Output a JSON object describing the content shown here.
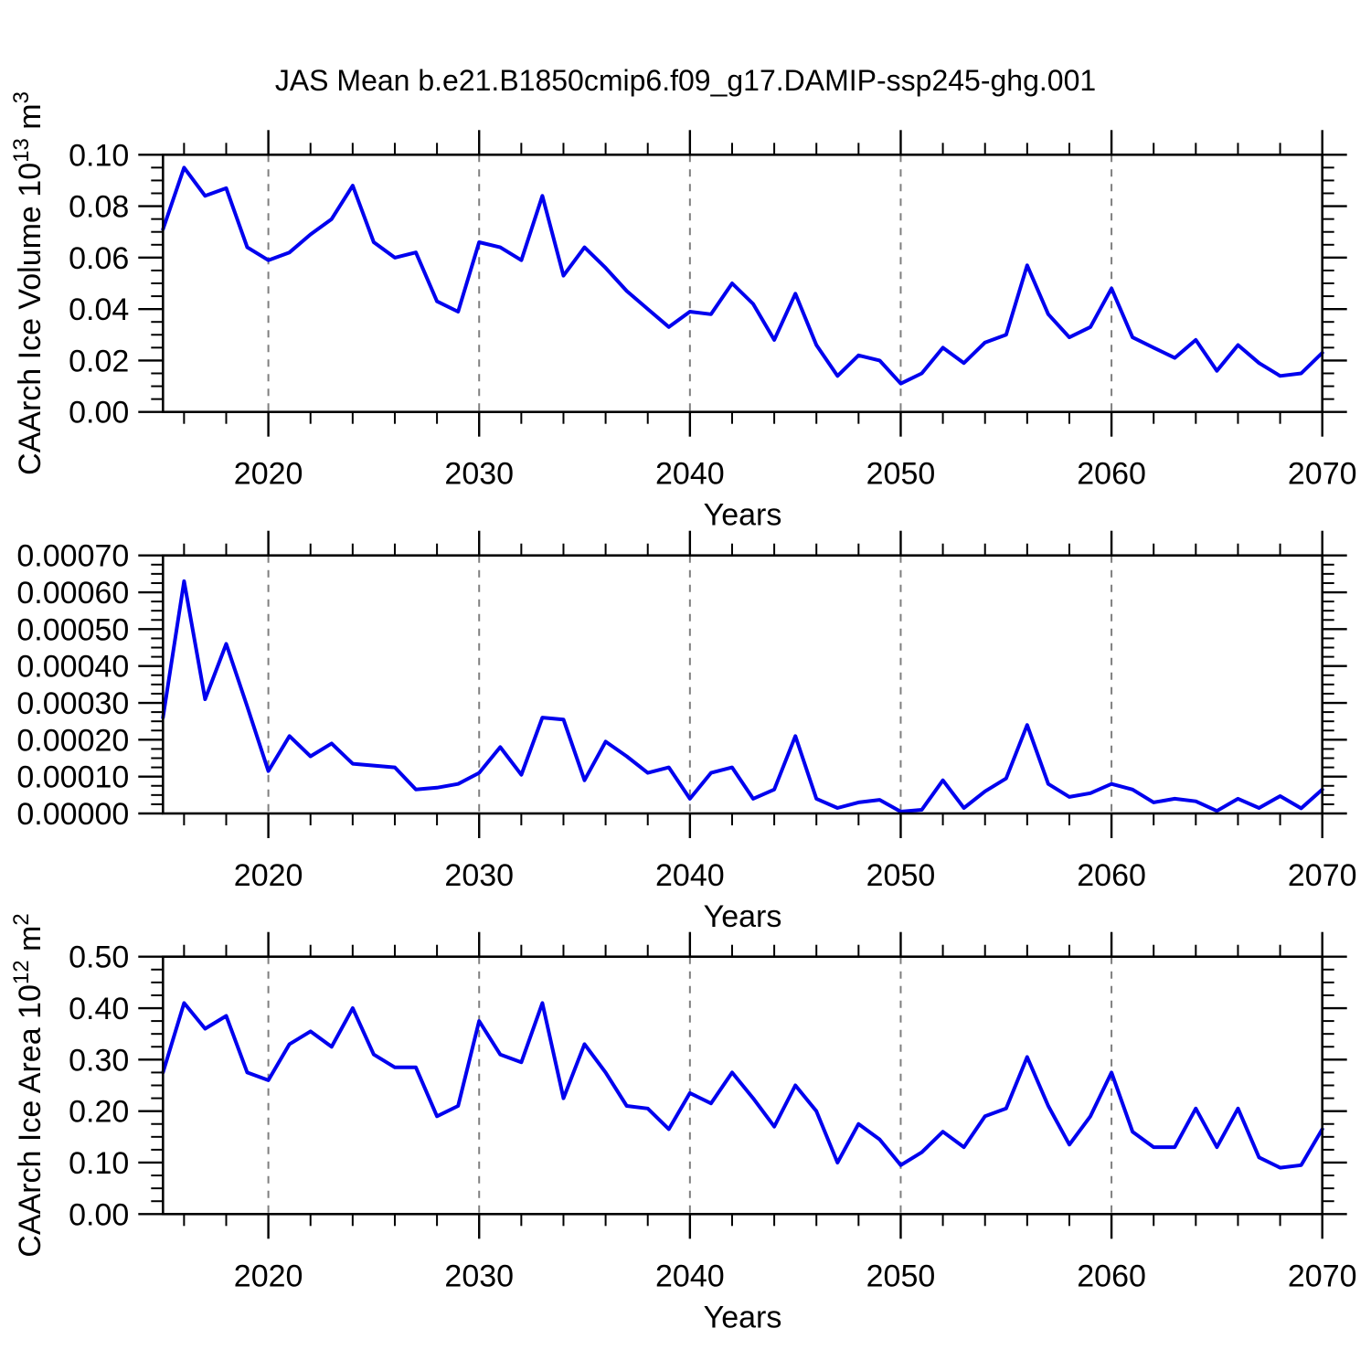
{
  "figure_title": "JAS Mean b.e21.B1850cmip6.f09_g17.DAMIP-ssp245-ghg.001",
  "colors": {
    "line": "#0000ee",
    "axis": "#000000",
    "gridline": "#7f7f7f",
    "background": "#ffffff"
  },
  "years": [
    2015,
    2016,
    2017,
    2018,
    2019,
    2020,
    2021,
    2022,
    2023,
    2024,
    2025,
    2026,
    2027,
    2028,
    2029,
    2030,
    2031,
    2032,
    2033,
    2034,
    2035,
    2036,
    2037,
    2038,
    2039,
    2040,
    2041,
    2042,
    2043,
    2044,
    2045,
    2046,
    2047,
    2048,
    2049,
    2050,
    2051,
    2052,
    2053,
    2054,
    2055,
    2056,
    2057,
    2058,
    2059,
    2060,
    2061,
    2062,
    2063,
    2064,
    2065,
    2066,
    2067,
    2068,
    2069,
    2070
  ],
  "chart_data": [
    {
      "id": "ice-volume",
      "type": "line",
      "ylabel": "CAArch Ice Volume 10^13 m^3",
      "ylabel_parts": [
        {
          "t": "CAArch Ice Volume 10"
        },
        {
          "t": "13",
          "sup": true
        },
        {
          "t": " m"
        },
        {
          "t": "3",
          "sup": true
        }
      ],
      "xlabel": "Years",
      "xlim": [
        2015,
        2070
      ],
      "x_tick_labels": [
        "2020",
        "2030",
        "2040",
        "2050",
        "2060",
        "2070"
      ],
      "x_tick_values": [
        2020,
        2030,
        2040,
        2050,
        2060,
        2070
      ],
      "x_minor_step": 2,
      "gridline_years": [
        2020,
        2030,
        2040,
        2050,
        2060
      ],
      "ylim": [
        0.0,
        0.1
      ],
      "y_major_step": 0.02,
      "y_minor_step": 0.005,
      "y_tick_labels": [
        "0.00",
        "0.02",
        "0.04",
        "0.06",
        "0.08",
        "0.10"
      ],
      "values": [
        0.071,
        0.095,
        0.084,
        0.087,
        0.064,
        0.059,
        0.062,
        0.069,
        0.075,
        0.088,
        0.066,
        0.06,
        0.062,
        0.043,
        0.039,
        0.066,
        0.064,
        0.059,
        0.084,
        0.053,
        0.064,
        0.056,
        0.047,
        0.04,
        0.033,
        0.039,
        0.038,
        0.05,
        0.042,
        0.028,
        0.046,
        0.026,
        0.014,
        0.022,
        0.02,
        0.011,
        0.015,
        0.025,
        0.019,
        0.027,
        0.03,
        0.057,
        0.038,
        0.029,
        0.033,
        0.048,
        0.029,
        0.025,
        0.021,
        0.028,
        0.016,
        0.026,
        0.019,
        0.014,
        0.015,
        0.023
      ]
    },
    {
      "id": "ice-volume-tendency",
      "type": "line",
      "ylabel": "",
      "ylabel_parts": [],
      "xlabel": "Years",
      "xlim": [
        2015,
        2070
      ],
      "x_tick_labels": [
        "2020",
        "2030",
        "2040",
        "2050",
        "2060",
        "2070"
      ],
      "x_tick_values": [
        2020,
        2030,
        2040,
        2050,
        2060,
        2070
      ],
      "x_minor_step": 2,
      "gridline_years": [
        2020,
        2030,
        2040,
        2050,
        2060
      ],
      "ylim": [
        0.0,
        0.0007
      ],
      "y_major_step": 0.0001,
      "y_minor_step": 2.5e-05,
      "y_tick_labels": [
        "0.00000",
        "0.00010",
        "0.00020",
        "0.00030",
        "0.00040",
        "0.00050",
        "0.00060",
        "0.00070"
      ],
      "values": [
        0.00026,
        0.00063,
        0.00031,
        0.00046,
        0.00029,
        0.000115,
        0.00021,
        0.000155,
        0.00019,
        0.000135,
        0.00013,
        0.000125,
        6.5e-05,
        7e-05,
        8e-05,
        0.00011,
        0.00018,
        0.000105,
        0.00026,
        0.000255,
        9e-05,
        0.000195,
        0.000155,
        0.00011,
        0.000125,
        4e-05,
        0.00011,
        0.000125,
        4e-05,
        6.5e-05,
        0.00021,
        4e-05,
        1.5e-05,
        3e-05,
        3.7e-05,
        5e-06,
        1e-05,
        9e-05,
        1.5e-05,
        6e-05,
        9.5e-05,
        0.00024,
        8e-05,
        4.5e-05,
        5.5e-05,
        8e-05,
        6.5e-05,
        3e-05,
        4e-05,
        3.3e-05,
        7e-06,
        4e-05,
        1.5e-05,
        4.7e-05,
        1.4e-05,
        6.5e-05
      ]
    },
    {
      "id": "ice-area",
      "type": "line",
      "ylabel": "CAArch Ice Area 10^12 m^2",
      "ylabel_parts": [
        {
          "t": "CAArch Ice Area 10"
        },
        {
          "t": "12",
          "sup": true
        },
        {
          "t": " m"
        },
        {
          "t": "2",
          "sup": true
        }
      ],
      "xlabel": "Years",
      "xlim": [
        2015,
        2070
      ],
      "x_tick_labels": [
        "2020",
        "2030",
        "2040",
        "2050",
        "2060",
        "2070"
      ],
      "x_tick_values": [
        2020,
        2030,
        2040,
        2050,
        2060,
        2070
      ],
      "x_minor_step": 2,
      "gridline_years": [
        2020,
        2030,
        2040,
        2050,
        2060
      ],
      "ylim": [
        0.0,
        0.5
      ],
      "y_major_step": 0.1,
      "y_minor_step": 0.025,
      "y_tick_labels": [
        "0.00",
        "0.10",
        "0.20",
        "0.30",
        "0.40",
        "0.50"
      ],
      "values": [
        0.275,
        0.41,
        0.36,
        0.385,
        0.275,
        0.26,
        0.33,
        0.355,
        0.325,
        0.4,
        0.31,
        0.285,
        0.285,
        0.19,
        0.21,
        0.375,
        0.31,
        0.295,
        0.41,
        0.225,
        0.33,
        0.275,
        0.21,
        0.205,
        0.165,
        0.235,
        0.215,
        0.275,
        0.225,
        0.17,
        0.25,
        0.2,
        0.1,
        0.175,
        0.145,
        0.095,
        0.12,
        0.16,
        0.13,
        0.19,
        0.205,
        0.305,
        0.21,
        0.135,
        0.19,
        0.275,
        0.16,
        0.13,
        0.13,
        0.205,
        0.13,
        0.205,
        0.11,
        0.09,
        0.095,
        0.165
      ]
    }
  ]
}
